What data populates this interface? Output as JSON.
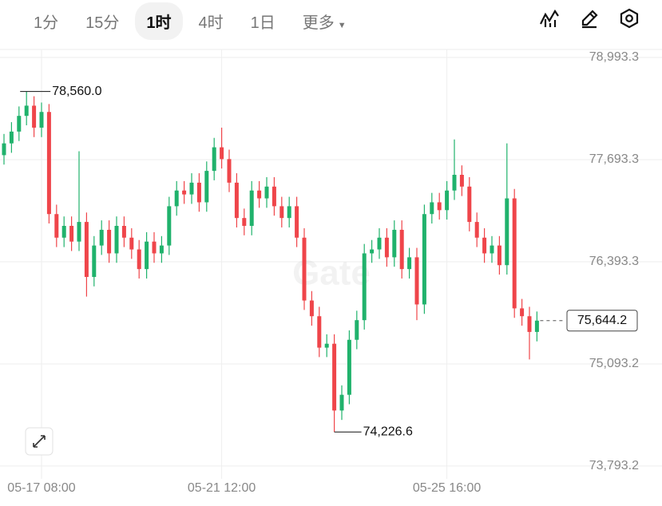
{
  "tabs": [
    "1分",
    "15分",
    "1时",
    "4时",
    "1日",
    "更多"
  ],
  "active_tab": 2,
  "chart_data": {
    "type": "candlestick",
    "watermark": "Gate",
    "up_color": "#20b26c",
    "down_color": "#ef454a",
    "categories": [
      null,
      null,
      null,
      null,
      null,
      "05-17 08:00",
      null,
      null,
      null,
      null,
      null,
      null,
      null,
      null,
      null,
      null,
      null,
      null,
      null,
      null,
      null,
      null,
      null,
      null,
      null,
      null,
      null,
      null,
      null,
      "05-21 12:00",
      null,
      null,
      null,
      null,
      null,
      null,
      null,
      null,
      null,
      null,
      null,
      null,
      null,
      null,
      null,
      null,
      null,
      null,
      null,
      null,
      null,
      null,
      null,
      null,
      null,
      null,
      null,
      null,
      null,
      "05-25 16:00",
      null,
      null,
      null,
      null,
      null,
      null,
      null,
      null,
      null,
      null,
      null,
      null
    ],
    "open": [
      77750,
      77900,
      78050,
      78250,
      78380,
      78100,
      78300,
      77000,
      76700,
      76850,
      76650,
      76900,
      76200,
      76600,
      76800,
      76500,
      76850,
      76700,
      76550,
      76300,
      76650,
      76500,
      76600,
      77100,
      77300,
      77250,
      77400,
      77150,
      77550,
      77850,
      77700,
      77400,
      76950,
      76850,
      77300,
      77200,
      77350,
      77100,
      76950,
      77100,
      76700,
      75900,
      75700,
      75300,
      75350,
      74500,
      74700,
      75400,
      75650,
      76500,
      76550,
      76700,
      76450,
      76800,
      76300,
      76450,
      75850,
      77000,
      77150,
      77050,
      77300,
      77500,
      77350,
      76900,
      76700,
      76500,
      76600,
      76350,
      77200,
      75800,
      75700,
      75500
    ],
    "high": [
      78020,
      78170,
      78370,
      78560,
      78500,
      78420,
      78400,
      77120,
      76970,
      76970,
      77800,
      77020,
      76720,
      76920,
      76920,
      76970,
      76970,
      76820,
      76670,
      76770,
      76770,
      76720,
      77220,
      77420,
      77420,
      77520,
      77520,
      77670,
      77970,
      78100,
      77820,
      77520,
      77070,
      77420,
      77420,
      77470,
      77470,
      77220,
      77220,
      77220,
      76820,
      76020,
      75820,
      75470,
      75470,
      74820,
      75520,
      75770,
      76620,
      76670,
      76820,
      76820,
      76920,
      76920,
      76570,
      76570,
      77120,
      77270,
      77270,
      77420,
      77950,
      77620,
      77470,
      77020,
      76820,
      76720,
      76720,
      77900,
      77320,
      75920,
      75820,
      75760
    ],
    "low": [
      77630,
      77780,
      77930,
      78130,
      77980,
      77980,
      76880,
      76580,
      76580,
      76530,
      76530,
      75950,
      76080,
      76480,
      76380,
      76380,
      76580,
      76430,
      76180,
      76180,
      76380,
      76380,
      76480,
      76980,
      77130,
      77130,
      77030,
      77030,
      77430,
      77580,
      77280,
      76830,
      76730,
      76730,
      77080,
      77080,
      76980,
      76830,
      76830,
      76580,
      75780,
      75580,
      75180,
      75180,
      74226.6,
      74380,
      74580,
      75280,
      75530,
      76380,
      76430,
      76330,
      76330,
      76180,
      76180,
      75650,
      75730,
      76880,
      76930,
      76930,
      77180,
      77230,
      76780,
      76580,
      76380,
      76380,
      76230,
      76230,
      75680,
      75580,
      75150,
      75380
    ],
    "close": [
      77900,
      78050,
      78250,
      78380,
      78100,
      78300,
      77000,
      76700,
      76850,
      76650,
      76900,
      76200,
      76600,
      76800,
      76500,
      76850,
      76700,
      76550,
      76300,
      76650,
      76500,
      76600,
      77100,
      77300,
      77250,
      77400,
      77150,
      77550,
      77850,
      77700,
      77400,
      76950,
      76850,
      77300,
      77200,
      77350,
      77100,
      76950,
      77100,
      76700,
      75900,
      75700,
      75300,
      75350,
      74500,
      74700,
      75400,
      75650,
      76500,
      76550,
      76700,
      76450,
      76800,
      76300,
      76450,
      75850,
      77000,
      77150,
      77050,
      77300,
      77500,
      77350,
      76900,
      76700,
      76500,
      76600,
      76350,
      77200,
      75800,
      75700,
      75500,
      75644.2
    ],
    "ylim": [
      73630,
      79095
    ],
    "yticks": [
      {
        "value": 78993.3,
        "label": "78,993.3"
      },
      {
        "value": 77693.3,
        "label": "77,693.3"
      },
      {
        "value": 76393.3,
        "label": "76,393.3"
      },
      {
        "value": 75093.2,
        "label": "75,093.2"
      },
      {
        "value": 73793.2,
        "label": "73,793.2"
      }
    ],
    "grid": true,
    "high_marker": {
      "value": 78560,
      "label": "78,560.0"
    },
    "low_marker": {
      "value": 74226.6,
      "label": "74,226.6"
    },
    "last_price": {
      "value": 75644.2,
      "label": "75,644.2"
    }
  }
}
